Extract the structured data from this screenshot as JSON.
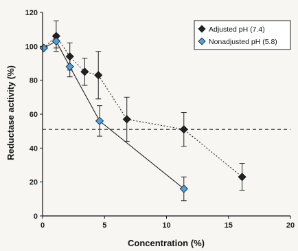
{
  "chart_data": {
    "type": "line",
    "title": "",
    "xlabel": "Concentration (%)",
    "ylabel": "Reductase activity (%)",
    "xlim": [
      0,
      20
    ],
    "ylim": [
      0,
      120
    ],
    "x_ticks": [
      "0",
      "5",
      "10",
      "15",
      "20"
    ],
    "y_ticks": [
      "0",
      "20",
      "40",
      "60",
      "80",
      "100",
      "120"
    ],
    "grid": false,
    "legend_position": "top-right",
    "reference_line": {
      "y": 51,
      "style": "dashed"
    },
    "series": [
      {
        "name": "Adjusted pH (7.4)",
        "marker": "diamond",
        "color": "#222222",
        "line_style": "dotted",
        "points": [
          {
            "x": 0.1,
            "y": 99,
            "err": 0
          },
          {
            "x": 1.1,
            "y": 106,
            "err": 9
          },
          {
            "x": 2.2,
            "y": 94,
            "err": 8
          },
          {
            "x": 3.4,
            "y": 85,
            "err": 8
          },
          {
            "x": 4.5,
            "y": 83,
            "err": 14
          },
          {
            "x": 6.8,
            "y": 57,
            "err": 13
          },
          {
            "x": 11.4,
            "y": 51,
            "err": 10
          },
          {
            "x": 16.1,
            "y": 23,
            "err": 8
          }
        ]
      },
      {
        "name": "Nonadjusted pH (5.8)",
        "marker": "diamond",
        "color": "#4aa3df",
        "line_style": "solid",
        "points": [
          {
            "x": 0.1,
            "y": 99,
            "err": 0
          },
          {
            "x": 1.1,
            "y": 103,
            "err": 4
          },
          {
            "x": 2.2,
            "y": 88,
            "err": 6
          },
          {
            "x": 4.6,
            "y": 56,
            "err": 9
          },
          {
            "x": 11.4,
            "y": 16,
            "err": 7
          }
        ]
      }
    ]
  }
}
